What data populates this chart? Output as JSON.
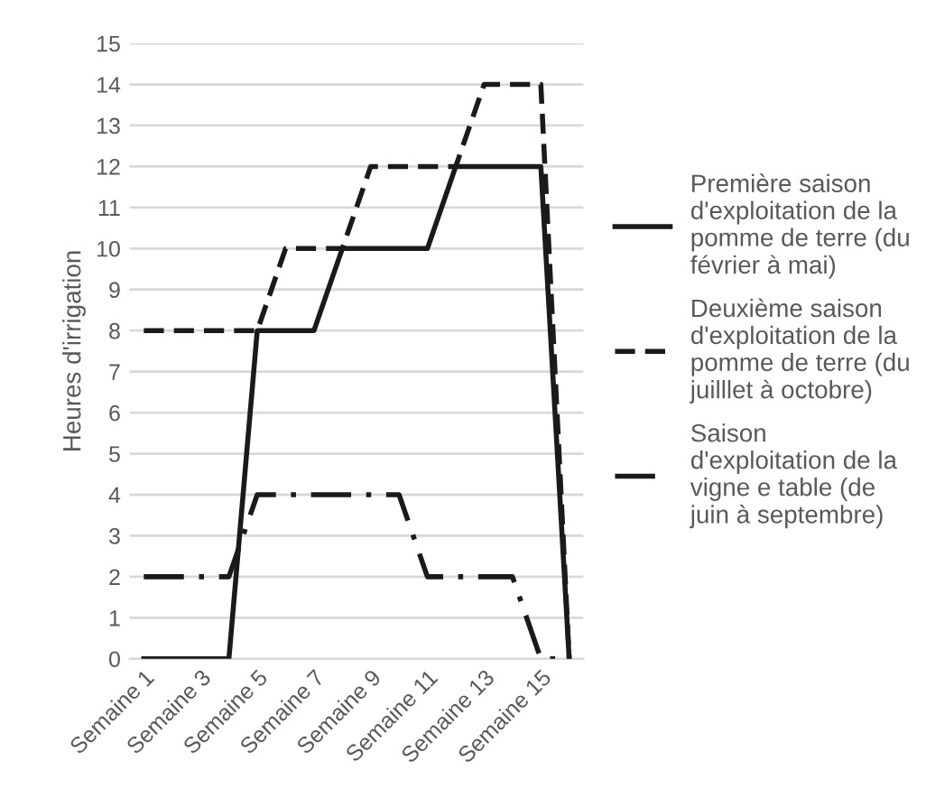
{
  "chart_data": {
    "type": "line",
    "ylabel": "Heures d'irrigation",
    "categories": [
      "Semaine 1",
      null,
      "Semaine 3",
      null,
      "Semaine 5",
      null,
      "Semaine 7",
      null,
      "Semaine 9",
      null,
      "Semaine 11",
      null,
      "Semaine 13",
      null,
      "Semaine 15",
      null
    ],
    "series": [
      {
        "name": "Première saison\nd'exploitation de la\npomme de terre (du\nfévrier à mai)",
        "color": "#1a1a1a",
        "line_style": "solid",
        "values": [
          0,
          0,
          0,
          0,
          8,
          8,
          8,
          10,
          10,
          10,
          10,
          12,
          12,
          12,
          12,
          0
        ]
      },
      {
        "name": "Deuxième saison\nd'exploitation de la\npomme de terre (du\njuilllet à octobre)",
        "color": "#1a1a1a",
        "line_style": "dashed",
        "values": [
          8,
          8,
          8,
          8,
          8,
          10,
          10,
          10,
          12,
          12,
          12,
          12,
          14,
          14,
          14,
          0
        ]
      },
      {
        "name": "Saison\nd'exploitation de la\nvigne e table (de\njuin à septembre)",
        "color": "#1a1a1a",
        "line_style": "dashdot",
        "values": [
          2,
          2,
          2,
          2,
          4,
          4,
          4,
          4,
          4,
          4,
          2,
          2,
          2,
          2,
          0,
          0
        ]
      }
    ],
    "ylim": [
      0,
      15
    ],
    "yticks": [
      0,
      1,
      2,
      3,
      4,
      5,
      6,
      7,
      8,
      9,
      10,
      11,
      12,
      13,
      14,
      15
    ],
    "grid": "y",
    "legend": "right",
    "marker": "none"
  }
}
